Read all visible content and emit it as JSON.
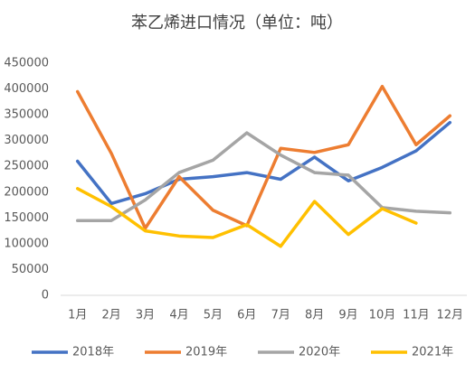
{
  "chart_data": {
    "type": "line",
    "title": "苯乙烯进口情况（单位：吨）",
    "categories": [
      "1月",
      "2月",
      "3月",
      "4月",
      "5月",
      "6月",
      "7月",
      "8月",
      "9月",
      "10月",
      "11月",
      "12月"
    ],
    "series": [
      {
        "name": "2018年",
        "color": "#4472c4",
        "values": [
          260000,
          178000,
          197000,
          225000,
          230000,
          238000,
          225000,
          268000,
          222000,
          248000,
          280000,
          335000
        ]
      },
      {
        "name": "2019年",
        "color": "#ed7d31",
        "values": [
          395000,
          275000,
          130000,
          230000,
          165000,
          135000,
          285000,
          277000,
          292000,
          405000,
          292000,
          348000
        ]
      },
      {
        "name": "2020年",
        "color": "#a5a5a5",
        "values": [
          145000,
          145000,
          185000,
          238000,
          262000,
          315000,
          272000,
          238000,
          233000,
          170000,
          163000,
          160000
        ]
      },
      {
        "name": "2021年",
        "color": "#ffc000",
        "values": [
          207000,
          172000,
          125000,
          115000,
          112000,
          137000,
          95000,
          182000,
          118000,
          168000,
          140000,
          null
        ]
      }
    ],
    "ylim": [
      0,
      450000
    ],
    "yticks": [
      0,
      50000,
      100000,
      150000,
      200000,
      250000,
      300000,
      350000,
      400000,
      450000
    ],
    "grid": false,
    "legend": "bottom"
  }
}
